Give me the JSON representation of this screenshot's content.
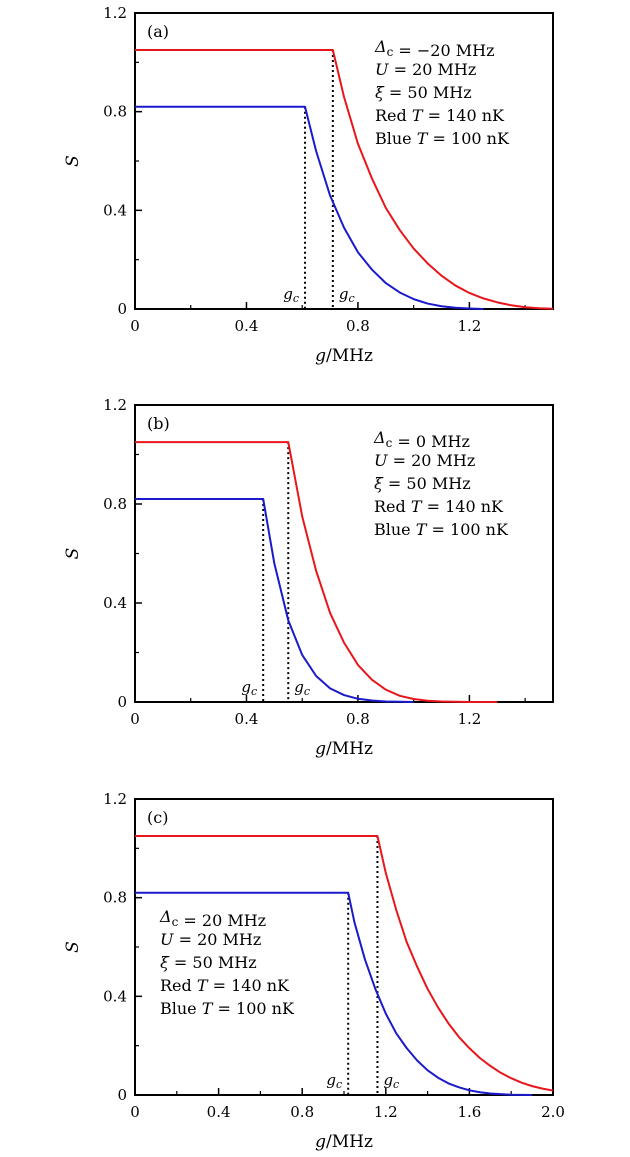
{
  "chart_data": [
    {
      "type": "line",
      "panel_label": "(a)",
      "xlabel": "g/MHz",
      "ylabel": "S",
      "xlim": [
        0,
        1.5
      ],
      "ylim": [
        0,
        1.2
      ],
      "xticks": [
        0,
        0.4,
        0.8,
        1.2
      ],
      "xtick_labels": [
        "0",
        "0.4",
        "0.8",
        "1.2"
      ],
      "yticks": [
        0,
        0.4,
        0.8,
        1.2
      ],
      "ytick_labels": [
        "0",
        "0.4",
        "0.8",
        "1.2"
      ],
      "annotations": [
        "Δc = −20 MHz",
        "U = 20 MHz",
        "ξ = 50 MHz",
        "Red T = 140 nK",
        "Blue T = 100 nK"
      ],
      "annotation_position": "top-right",
      "critical_label": "gc",
      "series": [
        {
          "color": "#e8161b",
          "plateau": 1.05,
          "gc": 0.71,
          "x": [
            0,
            0.71,
            0.75,
            0.8,
            0.85,
            0.9,
            0.95,
            1.0,
            1.05,
            1.1,
            1.15,
            1.2,
            1.25,
            1.3,
            1.35,
            1.4,
            1.45,
            1.5
          ],
          "y": [
            1.05,
            1.05,
            0.86,
            0.67,
            0.53,
            0.41,
            0.32,
            0.245,
            0.185,
            0.135,
            0.095,
            0.065,
            0.043,
            0.027,
            0.015,
            0.007,
            0.003,
            0.001
          ]
        },
        {
          "color": "#1a1acb",
          "plateau": 0.82,
          "gc": 0.61,
          "x": [
            0,
            0.61,
            0.65,
            0.7,
            0.75,
            0.8,
            0.85,
            0.9,
            0.95,
            1.0,
            1.05,
            1.1,
            1.15,
            1.2,
            1.25
          ],
          "y": [
            0.82,
            0.82,
            0.64,
            0.46,
            0.33,
            0.23,
            0.16,
            0.105,
            0.067,
            0.04,
            0.022,
            0.011,
            0.005,
            0.002,
            0.0
          ]
        }
      ]
    },
    {
      "type": "line",
      "panel_label": "(b)",
      "xlabel": "g/MHz",
      "ylabel": "S",
      "xlim": [
        0,
        1.5
      ],
      "ylim": [
        0,
        1.2
      ],
      "xticks": [
        0,
        0.4,
        0.8,
        1.2
      ],
      "xtick_labels": [
        "0",
        "0.4",
        "0.8",
        "1.2"
      ],
      "yticks": [
        0,
        0.4,
        0.8,
        1.2
      ],
      "ytick_labels": [
        "0",
        "0.4",
        "0.8",
        "1.2"
      ],
      "annotations": [
        "Δc = 0 MHz",
        "U = 20 MHz",
        "ξ = 50 MHz",
        "Red T = 140 nK",
        "Blue T = 100 nK"
      ],
      "annotation_position": "top-right",
      "critical_label": "gc",
      "series": [
        {
          "color": "#e8161b",
          "plateau": 1.05,
          "gc": 0.55,
          "x": [
            0,
            0.55,
            0.6,
            0.65,
            0.7,
            0.75,
            0.8,
            0.85,
            0.9,
            0.95,
            1.0,
            1.05,
            1.1,
            1.2,
            1.3
          ],
          "y": [
            1.05,
            1.05,
            0.75,
            0.53,
            0.36,
            0.24,
            0.15,
            0.09,
            0.05,
            0.025,
            0.012,
            0.005,
            0.002,
            0.0,
            0.0
          ]
        },
        {
          "color": "#1a1acb",
          "plateau": 0.82,
          "gc": 0.46,
          "x": [
            0,
            0.46,
            0.5,
            0.55,
            0.6,
            0.65,
            0.7,
            0.75,
            0.8,
            0.85,
            0.9,
            0.95,
            1.0
          ],
          "y": [
            0.82,
            0.82,
            0.56,
            0.33,
            0.19,
            0.105,
            0.055,
            0.028,
            0.013,
            0.006,
            0.002,
            0.001,
            0.0
          ]
        }
      ]
    },
    {
      "type": "line",
      "panel_label": "(c)",
      "xlabel": "g/MHz",
      "ylabel": "S",
      "xlim": [
        0,
        2.0
      ],
      "ylim": [
        0,
        1.2
      ],
      "xticks": [
        0,
        0.4,
        0.8,
        1.2,
        1.6,
        2.0
      ],
      "xtick_labels": [
        "0",
        "0.4",
        "0.8",
        "1.2",
        "1.6",
        "2.0"
      ],
      "yticks": [
        0,
        0.4,
        0.8,
        1.2
      ],
      "ytick_labels": [
        "0",
        "0.4",
        "0.8",
        "1.2"
      ],
      "annotations": [
        "Δc = 20 MHz",
        "U = 20 MHz",
        "ξ = 50 MHz",
        "Red T = 140 nK",
        "Blue T = 100 nK"
      ],
      "annotation_position": "middle-left",
      "critical_label": "gc",
      "series": [
        {
          "color": "#e8161b",
          "plateau": 1.05,
          "gc": 1.16,
          "x": [
            0,
            1.16,
            1.2,
            1.25,
            1.3,
            1.35,
            1.4,
            1.45,
            1.5,
            1.55,
            1.6,
            1.65,
            1.7,
            1.75,
            1.8,
            1.85,
            1.9,
            1.95,
            2.0
          ],
          "y": [
            1.05,
            1.05,
            0.9,
            0.75,
            0.62,
            0.52,
            0.43,
            0.355,
            0.29,
            0.235,
            0.19,
            0.15,
            0.118,
            0.09,
            0.068,
            0.05,
            0.036,
            0.026,
            0.018
          ]
        },
        {
          "color": "#1a1acb",
          "plateau": 0.82,
          "gc": 1.02,
          "x": [
            0,
            1.02,
            1.05,
            1.1,
            1.15,
            1.2,
            1.25,
            1.3,
            1.35,
            1.4,
            1.45,
            1.5,
            1.55,
            1.6,
            1.65,
            1.7,
            1.8,
            1.9
          ],
          "y": [
            0.82,
            0.82,
            0.7,
            0.55,
            0.43,
            0.33,
            0.25,
            0.19,
            0.14,
            0.1,
            0.07,
            0.047,
            0.031,
            0.019,
            0.011,
            0.006,
            0.001,
            0.0
          ]
        }
      ]
    }
  ]
}
